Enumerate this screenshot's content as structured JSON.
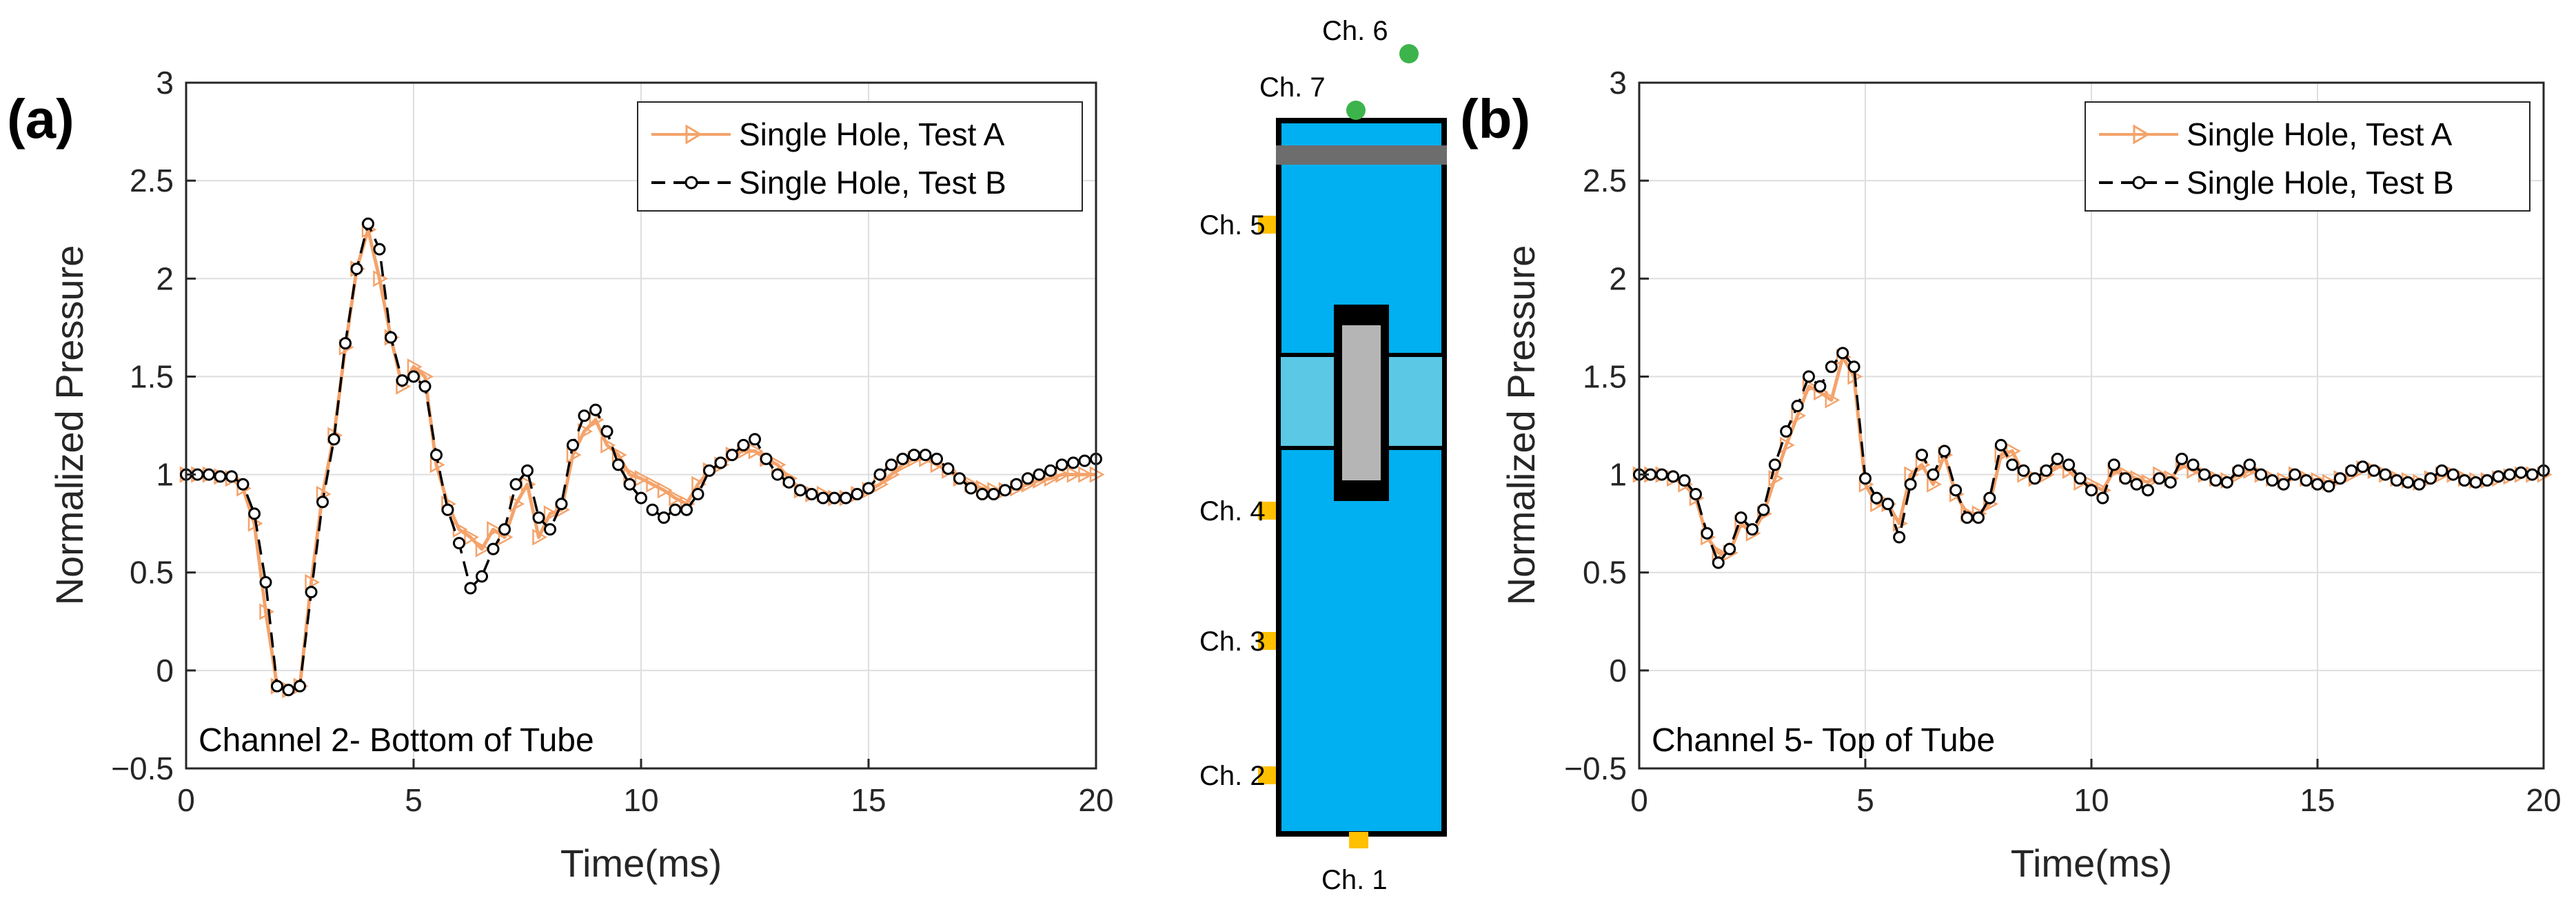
{
  "panels": {
    "a": {
      "label": "(a)"
    },
    "b": {
      "label": "(b)"
    }
  },
  "schematic": {
    "channels": [
      "Ch. 1",
      "Ch. 2",
      "Ch. 3",
      "Ch. 4",
      "Ch. 5",
      "Ch. 6",
      "Ch. 7"
    ],
    "colors": {
      "tube": "#00b0f0",
      "gap": "#5bc8e6",
      "sensor": "#ffc000",
      "external_sensor": "#3cb44b",
      "cap": "#6d6d6d"
    }
  },
  "colors": {
    "test_a": "#f4a36b",
    "test_b": "#000000",
    "grid": "#dedede",
    "axis": "#262626"
  },
  "chart_data": [
    {
      "type": "line",
      "panel": "(a)",
      "annotation": "Channel 2- Bottom of Tube",
      "xlabel": "Time(ms)",
      "ylabel": "Normalized Pressure",
      "xlim": [
        0,
        20
      ],
      "ylim": [
        -0.5,
        3
      ],
      "xticks": [
        "0",
        "5",
        "10",
        "15",
        "20"
      ],
      "yticks": [
        "−0.5",
        "0",
        "0.5",
        "1",
        "1.5",
        "2",
        "2.5",
        "3"
      ],
      "grid": true,
      "legend_position": "top-right",
      "series": [
        {
          "name": "Single Hole, Test A",
          "marker": "triangle-right",
          "x": [
            0.0,
            0.25,
            0.5,
            0.75,
            1.0,
            1.25,
            1.5,
            1.75,
            2.0,
            2.25,
            2.5,
            2.75,
            3.0,
            3.25,
            3.5,
            3.75,
            4.0,
            4.25,
            4.5,
            4.75,
            5.0,
            5.25,
            5.5,
            5.75,
            6.0,
            6.25,
            6.5,
            6.75,
            7.0,
            7.25,
            7.5,
            7.75,
            8.0,
            8.25,
            8.5,
            8.75,
            9.0,
            9.25,
            9.5,
            9.75,
            10.0,
            10.25,
            10.5,
            10.75,
            11.0,
            11.25,
            11.5,
            11.75,
            12.0,
            12.25,
            12.5,
            12.75,
            13.0,
            13.25,
            13.5,
            13.75,
            14.0,
            14.25,
            14.5,
            14.75,
            15.0,
            15.25,
            15.5,
            15.75,
            16.0,
            16.25,
            16.5,
            16.75,
            17.0,
            17.25,
            17.5,
            17.75,
            18.0,
            18.25,
            18.5,
            18.75,
            19.0,
            19.25,
            19.5,
            19.75,
            20.0
          ],
          "y": [
            1.0,
            1.0,
            1.0,
            0.99,
            0.98,
            0.93,
            0.75,
            0.3,
            -0.08,
            -0.1,
            -0.08,
            0.45,
            0.9,
            1.2,
            1.65,
            2.05,
            2.25,
            2.0,
            1.7,
            1.45,
            1.55,
            1.5,
            1.05,
            0.85,
            0.72,
            0.68,
            0.62,
            0.72,
            0.68,
            0.85,
            0.95,
            0.68,
            0.8,
            0.82,
            1.1,
            1.22,
            1.28,
            1.15,
            1.1,
            1.0,
            0.98,
            0.95,
            0.92,
            0.88,
            0.85,
            0.95,
            1.02,
            1.05,
            1.1,
            1.12,
            1.12,
            1.08,
            1.05,
            0.98,
            0.92,
            0.9,
            0.9,
            0.88,
            0.88,
            0.9,
            0.92,
            0.95,
            1.0,
            1.05,
            1.08,
            1.08,
            1.05,
            1.02,
            0.98,
            0.95,
            0.93,
            0.92,
            0.92,
            0.93,
            0.95,
            0.97,
            0.98,
            1.0,
            1.0,
            1.0,
            1.0
          ]
        },
        {
          "name": "Single Hole, Test B",
          "marker": "circle",
          "x": [
            0.0,
            0.25,
            0.5,
            0.75,
            1.0,
            1.25,
            1.5,
            1.75,
            2.0,
            2.25,
            2.5,
            2.75,
            3.0,
            3.25,
            3.5,
            3.75,
            4.0,
            4.25,
            4.5,
            4.75,
            5.0,
            5.25,
            5.5,
            5.75,
            6.0,
            6.25,
            6.5,
            6.75,
            7.0,
            7.25,
            7.5,
            7.75,
            8.0,
            8.25,
            8.5,
            8.75,
            9.0,
            9.25,
            9.5,
            9.75,
            10.0,
            10.25,
            10.5,
            10.75,
            11.0,
            11.25,
            11.5,
            11.75,
            12.0,
            12.25,
            12.5,
            12.75,
            13.0,
            13.25,
            13.5,
            13.75,
            14.0,
            14.25,
            14.5,
            14.75,
            15.0,
            15.25,
            15.5,
            15.75,
            16.0,
            16.25,
            16.5,
            16.75,
            17.0,
            17.25,
            17.5,
            17.75,
            18.0,
            18.25,
            18.5,
            18.75,
            19.0,
            19.25,
            19.5,
            19.75,
            20.0
          ],
          "y": [
            1.0,
            1.0,
            1.0,
            0.99,
            0.99,
            0.95,
            0.8,
            0.45,
            -0.08,
            -0.1,
            -0.08,
            0.4,
            0.86,
            1.18,
            1.67,
            2.05,
            2.28,
            2.15,
            1.7,
            1.48,
            1.5,
            1.45,
            1.1,
            0.82,
            0.65,
            0.42,
            0.48,
            0.62,
            0.72,
            0.95,
            1.02,
            0.78,
            0.72,
            0.85,
            1.15,
            1.3,
            1.33,
            1.22,
            1.05,
            0.95,
            0.88,
            0.82,
            0.78,
            0.82,
            0.82,
            0.9,
            1.02,
            1.06,
            1.1,
            1.15,
            1.18,
            1.08,
            1.0,
            0.96,
            0.92,
            0.9,
            0.88,
            0.88,
            0.88,
            0.9,
            0.93,
            1.0,
            1.05,
            1.08,
            1.1,
            1.1,
            1.08,
            1.03,
            0.98,
            0.93,
            0.9,
            0.9,
            0.92,
            0.95,
            0.98,
            1.0,
            1.02,
            1.05,
            1.06,
            1.07,
            1.08
          ]
        }
      ]
    },
    {
      "type": "line",
      "panel": "(b)",
      "annotation": "Channel 5- Top of Tube",
      "xlabel": "Time(ms)",
      "ylabel": "Normalized Pressure",
      "xlim": [
        0,
        20
      ],
      "ylim": [
        -0.5,
        3
      ],
      "xticks": [
        "0",
        "5",
        "10",
        "15",
        "20"
      ],
      "yticks": [
        "−0.5",
        "0",
        "0.5",
        "1",
        "1.5",
        "2",
        "2.5",
        "3"
      ],
      "grid": true,
      "legend_position": "top-right",
      "series": [
        {
          "name": "Single Hole, Test A",
          "marker": "triangle-right",
          "x": [
            0.0,
            0.25,
            0.5,
            0.75,
            1.0,
            1.25,
            1.5,
            1.75,
            2.0,
            2.25,
            2.5,
            2.75,
            3.0,
            3.25,
            3.5,
            3.75,
            4.0,
            4.25,
            4.5,
            4.75,
            5.0,
            5.25,
            5.5,
            5.75,
            6.0,
            6.25,
            6.5,
            6.75,
            7.0,
            7.25,
            7.5,
            7.75,
            8.0,
            8.25,
            8.5,
            8.75,
            9.0,
            9.25,
            9.5,
            9.75,
            10.0,
            10.25,
            10.5,
            10.75,
            11.0,
            11.25,
            11.5,
            11.75,
            12.0,
            12.25,
            12.5,
            12.75,
            13.0,
            13.25,
            13.5,
            13.75,
            14.0,
            14.25,
            14.5,
            14.75,
            15.0,
            15.25,
            15.5,
            15.75,
            16.0,
            16.25,
            16.5,
            16.75,
            17.0,
            17.25,
            17.5,
            17.75,
            18.0,
            18.25,
            18.5,
            18.75,
            19.0,
            19.25,
            19.5,
            19.75,
            20.0
          ],
          "y": [
            1.0,
            1.0,
            1.0,
            0.98,
            0.95,
            0.88,
            0.68,
            0.6,
            0.6,
            0.75,
            0.7,
            0.8,
            0.98,
            1.15,
            1.3,
            1.45,
            1.42,
            1.38,
            1.6,
            1.5,
            0.95,
            0.85,
            0.85,
            0.75,
            1.0,
            1.05,
            0.95,
            1.1,
            0.9,
            0.8,
            0.8,
            0.85,
            1.1,
            1.12,
            1.0,
            0.98,
            1.0,
            1.05,
            1.02,
            0.96,
            0.95,
            0.92,
            1.02,
            1.0,
            0.98,
            0.96,
            1.0,
            0.98,
            1.05,
            1.02,
            1.0,
            0.98,
            0.97,
            1.0,
            1.02,
            1.0,
            0.98,
            0.97,
            1.0,
            0.98,
            0.97,
            0.96,
            0.98,
            1.0,
            1.03,
            1.02,
            1.0,
            0.98,
            0.97,
            0.96,
            0.98,
            1.0,
            1.0,
            0.98,
            0.97,
            0.97,
            0.98,
            0.99,
            1.0,
            1.0,
            1.0
          ]
        },
        {
          "name": "Single Hole, Test B",
          "marker": "circle",
          "x": [
            0.0,
            0.25,
            0.5,
            0.75,
            1.0,
            1.25,
            1.5,
            1.75,
            2.0,
            2.25,
            2.5,
            2.75,
            3.0,
            3.25,
            3.5,
            3.75,
            4.0,
            4.25,
            4.5,
            4.75,
            5.0,
            5.25,
            5.5,
            5.75,
            6.0,
            6.25,
            6.5,
            6.75,
            7.0,
            7.25,
            7.5,
            7.75,
            8.0,
            8.25,
            8.5,
            8.75,
            9.0,
            9.25,
            9.5,
            9.75,
            10.0,
            10.25,
            10.5,
            10.75,
            11.0,
            11.25,
            11.5,
            11.75,
            12.0,
            12.25,
            12.5,
            12.75,
            13.0,
            13.25,
            13.5,
            13.75,
            14.0,
            14.25,
            14.5,
            14.75,
            15.0,
            15.25,
            15.5,
            15.75,
            16.0,
            16.25,
            16.5,
            16.75,
            17.0,
            17.25,
            17.5,
            17.75,
            18.0,
            18.25,
            18.5,
            18.75,
            19.0,
            19.25,
            19.5,
            19.75,
            20.0
          ],
          "y": [
            1.0,
            1.0,
            1.0,
            0.99,
            0.97,
            0.9,
            0.7,
            0.55,
            0.62,
            0.78,
            0.72,
            0.82,
            1.05,
            1.22,
            1.35,
            1.5,
            1.45,
            1.55,
            1.62,
            1.55,
            0.98,
            0.88,
            0.85,
            0.68,
            0.95,
            1.1,
            1.0,
            1.12,
            0.92,
            0.78,
            0.78,
            0.88,
            1.15,
            1.05,
            1.02,
            0.98,
            1.02,
            1.08,
            1.05,
            0.98,
            0.92,
            0.88,
            1.05,
            0.98,
            0.95,
            0.92,
            0.98,
            0.96,
            1.08,
            1.05,
            1.0,
            0.97,
            0.96,
            1.02,
            1.05,
            1.0,
            0.97,
            0.95,
            1.0,
            0.97,
            0.95,
            0.94,
            0.98,
            1.02,
            1.04,
            1.02,
            1.0,
            0.97,
            0.96,
            0.95,
            0.98,
            1.02,
            1.0,
            0.97,
            0.96,
            0.97,
            0.99,
            1.0,
            1.01,
            1.0,
            1.02
          ]
        }
      ]
    }
  ]
}
